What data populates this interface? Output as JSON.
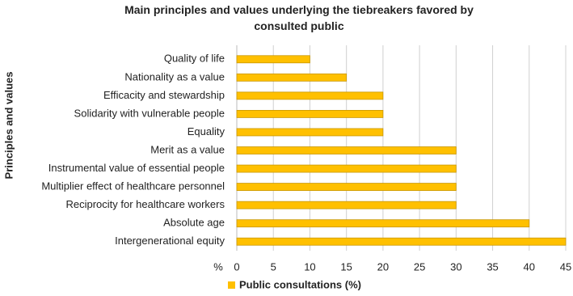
{
  "chart_data": {
    "type": "bar",
    "orientation": "horizontal",
    "title": "Main principles and values underlying the tiebreakers favored by consulted public",
    "ylabel": "Principles and values",
    "xlabel": "%",
    "categories": [
      "Quality of life",
      "Nationality as a value",
      "Efficacity and stewardship",
      "Solidarity with vulnerable people",
      "Equality",
      "Merit as a value",
      "Instrumental value of essential people",
      "Multiplier effect of healthcare personnel",
      "Reciprocity for healthcare workers",
      "Absolute age",
      "Intergenerational equity"
    ],
    "series": [
      {
        "name": "Public consultations (%)",
        "color": "#ffc000",
        "values": [
          10,
          15,
          20,
          20,
          20,
          30,
          30,
          30,
          30,
          40,
          45
        ]
      }
    ],
    "xlim": [
      0,
      45
    ],
    "xticks": [
      0,
      5,
      10,
      15,
      20,
      25,
      30,
      35,
      40,
      45
    ],
    "grid": true
  }
}
